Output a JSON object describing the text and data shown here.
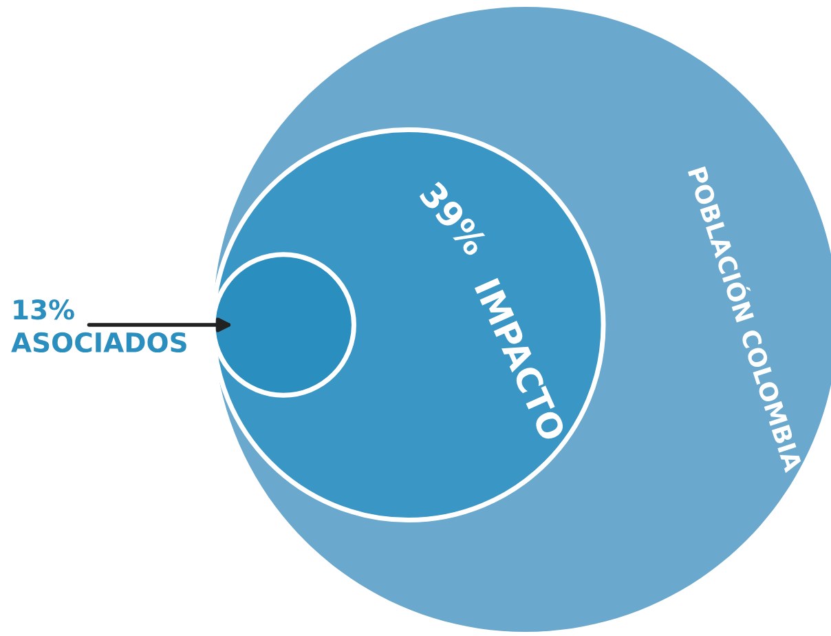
{
  "chart_data": {
    "type": "other",
    "categories": [
      "POBLACIÓN COLOMBIA",
      "IMPACTO",
      "ASOCIADOS"
    ],
    "values": [
      null,
      39,
      13
    ],
    "value_labels": [
      null,
      "39%",
      "13%"
    ],
    "colors": [
      "#6aa8cd",
      "#3a96c4",
      "#2a8ebf"
    ]
  }
}
